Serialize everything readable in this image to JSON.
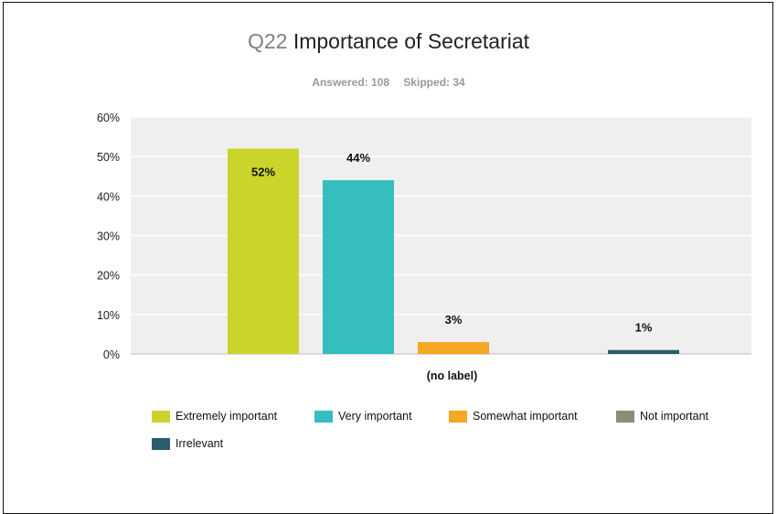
{
  "title": {
    "number": "Q22",
    "text": "Importance of Secretariat"
  },
  "stats": {
    "answered": "Answered: 108",
    "skipped": "Skipped: 34"
  },
  "chart_data": {
    "type": "bar",
    "categories": [
      "(no label)"
    ],
    "xlabel": "(no label)",
    "ylim": [
      0,
      60
    ],
    "yticks": [
      "0%",
      "10%",
      "20%",
      "30%",
      "40%",
      "50%",
      "60%"
    ],
    "grid": true,
    "legend_placement": "bottom",
    "series": [
      {
        "name": "Extremely important",
        "values": [
          52
        ],
        "label": "52%",
        "color": "#cad42a"
      },
      {
        "name": "Very important",
        "values": [
          44
        ],
        "label": "44%",
        "color": "#35bdbf"
      },
      {
        "name": "Somewhat important",
        "values": [
          3
        ],
        "label": "3%",
        "color": "#f5a623"
      },
      {
        "name": "Not important",
        "values": [
          0
        ],
        "label": "",
        "color": "#8b8c7a"
      },
      {
        "name": "Irrelevant",
        "values": [
          1
        ],
        "label": "1%",
        "color": "#2e5c6e"
      }
    ]
  }
}
